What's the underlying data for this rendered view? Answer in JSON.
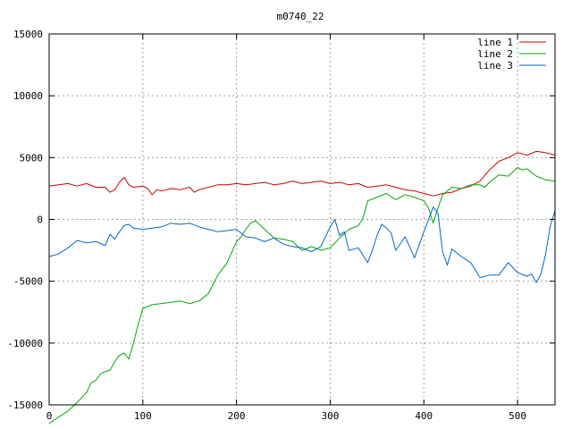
{
  "chart_data": {
    "type": "line",
    "title": "m0740_22",
    "xlabel": "",
    "ylabel": "",
    "xlim": [
      0,
      540
    ],
    "ylim": [
      -15000,
      15000
    ],
    "xticks": [
      0,
      100,
      200,
      300,
      400,
      500
    ],
    "yticks": [
      -15000,
      -10000,
      -5000,
      0,
      5000,
      10000,
      15000
    ],
    "grid": true,
    "legend_position": "top-right",
    "series": [
      {
        "name": "line 1",
        "color": "#cc0000",
        "x": [
          0,
          10,
          20,
          30,
          40,
          50,
          60,
          65,
          70,
          75,
          80,
          85,
          90,
          100,
          105,
          110,
          115,
          120,
          130,
          140,
          150,
          155,
          160,
          170,
          180,
          190,
          200,
          210,
          220,
          230,
          240,
          250,
          260,
          270,
          280,
          290,
          300,
          310,
          320,
          330,
          340,
          350,
          360,
          370,
          380,
          390,
          400,
          410,
          420,
          430,
          440,
          450,
          460,
          470,
          480,
          490,
          500,
          510,
          520,
          530,
          540
        ],
        "y": [
          2700,
          2800,
          2900,
          2700,
          2900,
          2600,
          2600,
          2200,
          2400,
          3000,
          3400,
          2800,
          2600,
          2700,
          2500,
          2000,
          2400,
          2300,
          2500,
          2400,
          2600,
          2200,
          2400,
          2600,
          2800,
          2800,
          2900,
          2800,
          2900,
          3000,
          2800,
          2900,
          3100,
          2900,
          3000,
          3100,
          2900,
          3000,
          2800,
          2900,
          2600,
          2700,
          2800,
          2600,
          2400,
          2300,
          2100,
          1900,
          2100,
          2200,
          2500,
          2700,
          3100,
          4000,
          4700,
          5000,
          5400,
          5200,
          5500,
          5400,
          5200
        ]
      },
      {
        "name": "line 2",
        "color": "#00aa00",
        "x": [
          0,
          10,
          20,
          30,
          40,
          45,
          50,
          55,
          60,
          65,
          70,
          75,
          80,
          85,
          90,
          95,
          100,
          110,
          120,
          130,
          140,
          150,
          160,
          170,
          180,
          190,
          200,
          205,
          210,
          215,
          220,
          230,
          240,
          250,
          260,
          270,
          280,
          290,
          300,
          310,
          320,
          330,
          335,
          340,
          350,
          360,
          370,
          380,
          390,
          400,
          405,
          410,
          415,
          420,
          430,
          440,
          450,
          460,
          465,
          470,
          480,
          490,
          500,
          505,
          510,
          520,
          530,
          540
        ],
        "y": [
          -16500,
          -16000,
          -15500,
          -14800,
          -14000,
          -13200,
          -13000,
          -12500,
          -12300,
          -12200,
          -11500,
          -11000,
          -10800,
          -11300,
          -10000,
          -8500,
          -7200,
          -6900,
          -6800,
          -6700,
          -6600,
          -6800,
          -6600,
          -6000,
          -4500,
          -3500,
          -1800,
          -1400,
          -800,
          -300,
          -100,
          -800,
          -1500,
          -1600,
          -1800,
          -2500,
          -2200,
          -2500,
          -2300,
          -1500,
          -800,
          -500,
          100,
          1500,
          1800,
          2100,
          1600,
          2000,
          1800,
          1500,
          900,
          -300,
          900,
          2000,
          2600,
          2500,
          2800,
          2800,
          2600,
          3000,
          3600,
          3500,
          4200,
          4000,
          4100,
          3500,
          3200,
          3100
        ]
      },
      {
        "name": "line 3",
        "color": "#0066cc",
        "x": [
          0,
          10,
          20,
          30,
          40,
          50,
          60,
          65,
          70,
          75,
          80,
          85,
          90,
          100,
          110,
          120,
          130,
          140,
          150,
          160,
          170,
          180,
          190,
          200,
          210,
          220,
          230,
          240,
          250,
          260,
          270,
          280,
          290,
          300,
          305,
          310,
          315,
          320,
          330,
          340,
          345,
          350,
          355,
          360,
          365,
          370,
          380,
          390,
          400,
          410,
          415,
          420,
          425,
          430,
          440,
          450,
          460,
          470,
          480,
          490,
          500,
          510,
          515,
          520,
          525,
          530,
          535,
          540
        ],
        "y": [
          -3000,
          -2800,
          -2300,
          -1700,
          -1900,
          -1800,
          -2100,
          -1200,
          -1600,
          -1000,
          -500,
          -400,
          -700,
          -800,
          -700,
          -600,
          -300,
          -400,
          -300,
          -600,
          -800,
          -1000,
          -900,
          -800,
          -1400,
          -1500,
          -1800,
          -1500,
          -2000,
          -2200,
          -2300,
          -2600,
          -2200,
          -600,
          0,
          -1300,
          -1000,
          -2500,
          -2300,
          -3500,
          -2500,
          -1300,
          -400,
          -700,
          -1100,
          -2500,
          -1400,
          -3100,
          -1000,
          1000,
          500,
          -2600,
          -3700,
          -2400,
          -3000,
          -3500,
          -4700,
          -4500,
          -4500,
          -3500,
          -4300,
          -4600,
          -4400,
          -5100,
          -4400,
          -2800,
          -500,
          700
        ]
      }
    ]
  }
}
